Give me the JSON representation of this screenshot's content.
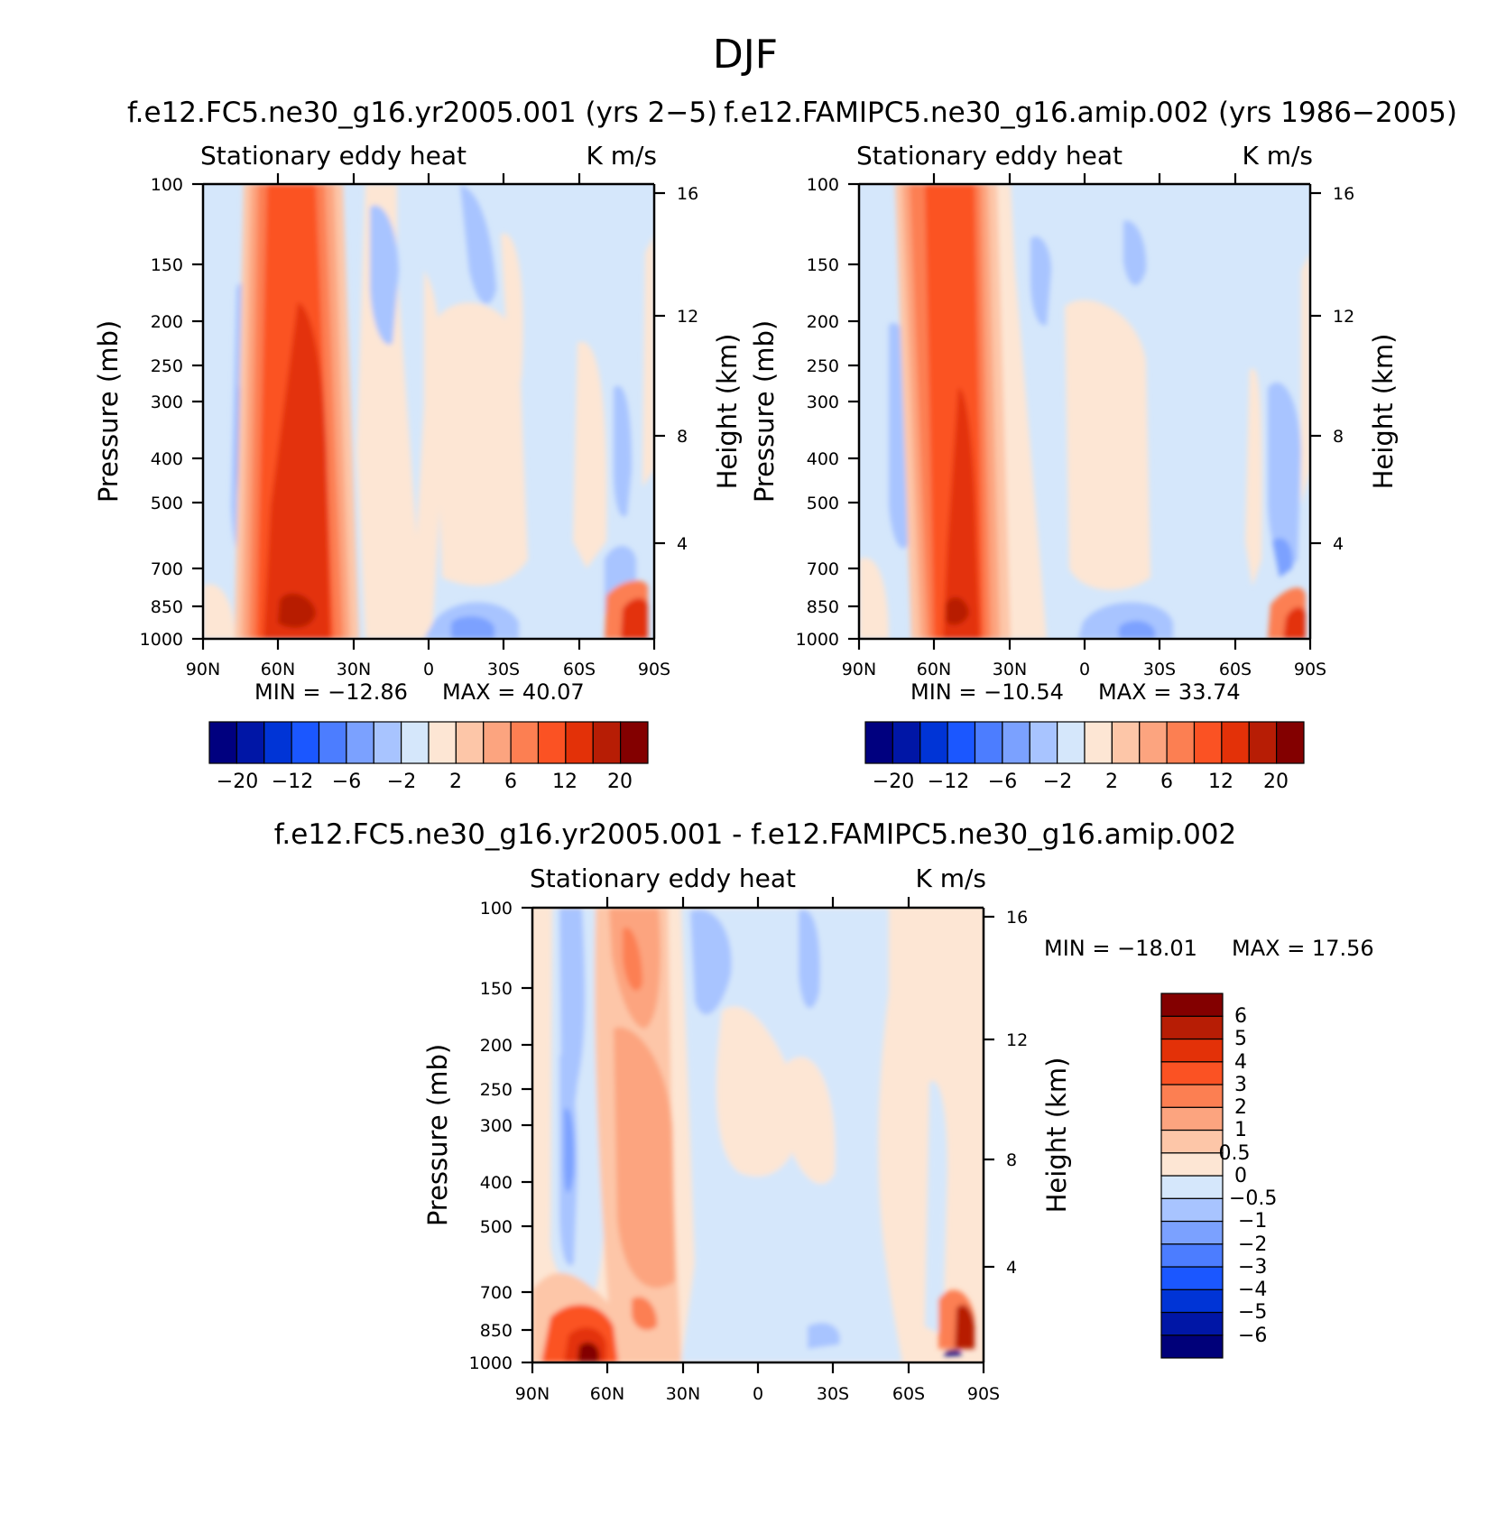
{
  "page": {
    "title": "DJF"
  },
  "colors": {
    "diverging_scale_20": [
      "#00007f",
      "#0016a6",
      "#0034d6",
      "#1b57ff",
      "#4c7dff",
      "#7ba1ff",
      "#a8c4ff",
      "#d5e7fb",
      "#fde6d4",
      "#fdc6a8",
      "#fca47f",
      "#fc7f52",
      "#fb5223",
      "#e33108",
      "#b71d05",
      "#830000"
    ],
    "diverging_scale_diff": [
      "#000079",
      "#0016a6",
      "#0034d6",
      "#1b57ff",
      "#4c7dff",
      "#7ba1ff",
      "#a8c4ff",
      "#d5e7fb",
      "#fde6d4",
      "#fdc6a8",
      "#fca47f",
      "#fc7f52",
      "#fb5223",
      "#e33108",
      "#b71d05",
      "#830000"
    ]
  },
  "chart_data": [
    {
      "type": "heatmap",
      "panel": "top-left",
      "title": "f.e12.FC5.ne30_g16.yr2005.001 (yrs 2-5)",
      "subtitle_left": "Stationary eddy heat",
      "subtitle_right": "K m/s",
      "xlabel": "",
      "ylabel": "Pressure (mb)",
      "y2label": "Height (km)",
      "x_ticks": [
        "90N",
        "60N",
        "30N",
        "0",
        "30S",
        "60S",
        "90S"
      ],
      "xlim": [
        90,
        -90
      ],
      "y_ticks": [
        100,
        150,
        200,
        250,
        300,
        400,
        500,
        700,
        850,
        1000
      ],
      "ylim": [
        1000,
        100
      ],
      "y2_ticks": [
        4,
        8,
        12,
        16
      ],
      "min_label": "MIN = -12.86",
      "max_label": "MAX = 40.07",
      "min": -12.86,
      "max": 40.07,
      "colorbar_labels": [
        "-20",
        "-12",
        "-6",
        "-2",
        "2",
        "6",
        "12",
        "20"
      ],
      "contour_levels": [
        -20,
        -16,
        -12,
        -9,
        -6,
        -4,
        -2,
        0,
        2,
        4,
        6,
        9,
        12,
        16,
        20
      ],
      "features": [
        {
          "lat": 48,
          "plev": 100,
          "value": 14,
          "note": "core of positive heat flux extending from surface to top"
        },
        {
          "lat": 45,
          "plev": 400,
          "value": 16
        },
        {
          "lat": 48,
          "plev": 900,
          "value": 24
        },
        {
          "lat": 75,
          "plev": 400,
          "value": -6
        },
        {
          "lat": 20,
          "plev": 200,
          "value": -3
        },
        {
          "lat": -15,
          "plev": 950,
          "value": -5
        },
        {
          "lat": -80,
          "plev": 980,
          "value": 20
        }
      ]
    },
    {
      "type": "heatmap",
      "panel": "top-right",
      "title": "f.e12.FAMIPC5.ne30_g16.amip.002 (yrs 1986-2005)",
      "subtitle_left": "Stationary eddy heat",
      "subtitle_right": "K m/s",
      "xlabel": "",
      "ylabel": "Pressure (mb)",
      "y2label": "Height (km)",
      "x_ticks": [
        "90N",
        "60N",
        "30N",
        "0",
        "30S",
        "60S",
        "90S"
      ],
      "xlim": [
        90,
        -90
      ],
      "y_ticks": [
        100,
        150,
        200,
        250,
        300,
        400,
        500,
        700,
        850,
        1000
      ],
      "ylim": [
        1000,
        100
      ],
      "y2_ticks": [
        4,
        8,
        12,
        16
      ],
      "min_label": "MIN = -10.54",
      "max_label": "MAX = 33.74",
      "min": -10.54,
      "max": 33.74,
      "colorbar_labels": [
        "-20",
        "-12",
        "-6",
        "-2",
        "2",
        "6",
        "12",
        "20"
      ],
      "contour_levels": [
        -20,
        -16,
        -12,
        -9,
        -6,
        -4,
        -2,
        0,
        2,
        4,
        6,
        9,
        12,
        16,
        20
      ],
      "features": [
        {
          "lat": 55,
          "plev": 100,
          "value": 12
        },
        {
          "lat": 50,
          "plev": 400,
          "value": 16
        },
        {
          "lat": 50,
          "plev": 950,
          "value": 20
        },
        {
          "lat": 75,
          "plev": 450,
          "value": -4
        },
        {
          "lat": -20,
          "plev": 150,
          "value": -3
        },
        {
          "lat": -15,
          "plev": 950,
          "value": -4
        },
        {
          "lat": -82,
          "plev": 970,
          "value": 16
        }
      ]
    },
    {
      "type": "heatmap",
      "panel": "bottom",
      "title": "f.e12.FC5.ne30_g16.yr2005.001 - f.e12.FAMIPC5.ne30_g16.amip.002",
      "subtitle_left": "Stationary eddy heat",
      "subtitle_right": "K m/s",
      "xlabel": "",
      "ylabel": "Pressure (mb)",
      "y2label": "Height (km)",
      "x_ticks": [
        "90N",
        "60N",
        "30N",
        "0",
        "30S",
        "60S",
        "90S"
      ],
      "xlim": [
        90,
        -90
      ],
      "y_ticks": [
        100,
        150,
        200,
        250,
        300,
        400,
        500,
        700,
        850,
        1000
      ],
      "ylim": [
        1000,
        100
      ],
      "y2_ticks": [
        4,
        8,
        12,
        16
      ],
      "min_label": "MIN = -18.01",
      "max_label": "MAX = 17.56",
      "min": -18.01,
      "max": 17.56,
      "colorbar_labels": [
        "6",
        "5",
        "4",
        "3",
        "2",
        "1",
        "0.5",
        "0",
        "-0.5",
        "-1",
        "-2",
        "-3",
        "-4",
        "-5",
        "-6"
      ],
      "contour_levels": [
        -6,
        -5,
        -4,
        -3,
        -2,
        -1,
        -0.5,
        0,
        0.5,
        1,
        2,
        3,
        4,
        5,
        6
      ],
      "features": [
        {
          "lat": 75,
          "plev": 350,
          "value": -2
        },
        {
          "lat": 50,
          "plev": 150,
          "value": 3
        },
        {
          "lat": 45,
          "plev": 500,
          "value": 2
        },
        {
          "lat": 70,
          "plev": 970,
          "value": 6
        },
        {
          "lat": 15,
          "plev": 150,
          "value": -1
        },
        {
          "lat": -82,
          "plev": 900,
          "value": 5
        },
        {
          "lat": -80,
          "plev": 990,
          "value": -6
        }
      ]
    }
  ]
}
